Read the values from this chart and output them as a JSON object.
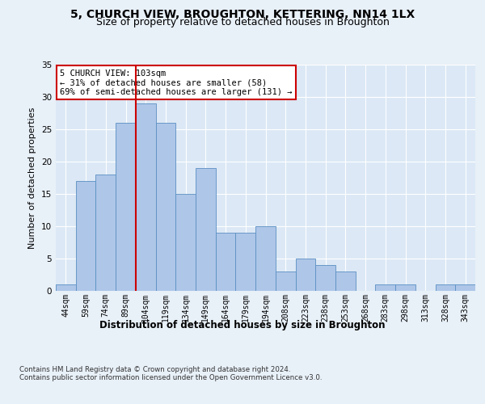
{
  "title": "5, CHURCH VIEW, BROUGHTON, KETTERING, NN14 1LX",
  "subtitle": "Size of property relative to detached houses in Broughton",
  "xlabel": "Distribution of detached houses by size in Broughton",
  "ylabel": "Number of detached properties",
  "categories": [
    "44sqm",
    "59sqm",
    "74sqm",
    "89sqm",
    "104sqm",
    "119sqm",
    "134sqm",
    "149sqm",
    "164sqm",
    "179sqm",
    "194sqm",
    "208sqm",
    "223sqm",
    "238sqm",
    "253sqm",
    "268sqm",
    "283sqm",
    "298sqm",
    "313sqm",
    "328sqm",
    "343sqm"
  ],
  "values": [
    1,
    17,
    18,
    26,
    29,
    26,
    15,
    19,
    9,
    9,
    10,
    3,
    5,
    4,
    3,
    0,
    1,
    1,
    0,
    1,
    1
  ],
  "bar_color": "#aec6e8",
  "bar_edge_color": "#5a8fc2",
  "bar_width": 1.0,
  "property_bin_index": 4,
  "vline_color": "#cc0000",
  "annotation_text": "5 CHURCH VIEW: 103sqm\n← 31% of detached houses are smaller (58)\n69% of semi-detached houses are larger (131) →",
  "annotation_box_color": "#ffffff",
  "annotation_box_edge_color": "#cc0000",
  "ylim": [
    0,
    35
  ],
  "yticks": [
    0,
    5,
    10,
    15,
    20,
    25,
    30,
    35
  ],
  "background_color": "#e8f0f8",
  "plot_bg_color": "#dce8f5",
  "grid_color": "#ffffff",
  "title_fontsize": 10,
  "subtitle_fontsize": 9,
  "xlabel_fontsize": 8.5,
  "ylabel_fontsize": 8,
  "tick_fontsize": 7,
  "annotation_fontsize": 7.5,
  "footer_text": "Contains HM Land Registry data © Crown copyright and database right 2024.\nContains public sector information licensed under the Open Government Licence v3.0."
}
